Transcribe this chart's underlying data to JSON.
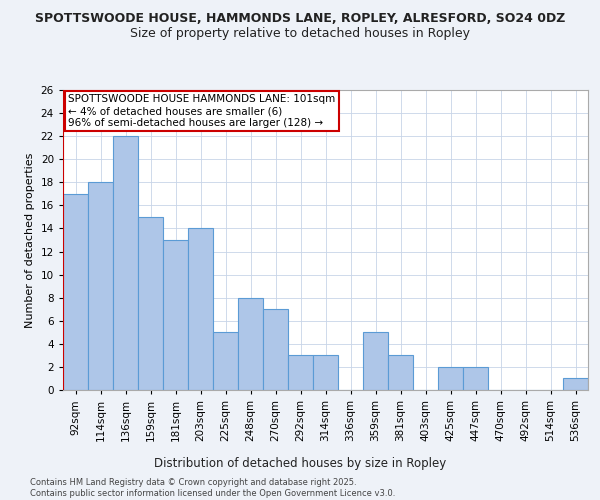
{
  "title1": "SPOTTSWOODE HOUSE, HAMMONDS LANE, ROPLEY, ALRESFORD, SO24 0DZ",
  "title2": "Size of property relative to detached houses in Ropley",
  "xlabel": "Distribution of detached houses by size in Ropley",
  "ylabel": "Number of detached properties",
  "categories": [
    "92sqm",
    "114sqm",
    "136sqm",
    "159sqm",
    "181sqm",
    "203sqm",
    "225sqm",
    "248sqm",
    "270sqm",
    "292sqm",
    "314sqm",
    "336sqm",
    "359sqm",
    "381sqm",
    "403sqm",
    "425sqm",
    "447sqm",
    "470sqm",
    "492sqm",
    "514sqm",
    "536sqm"
  ],
  "values": [
    17,
    18,
    22,
    15,
    13,
    14,
    5,
    8,
    7,
    3,
    3,
    0,
    5,
    3,
    0,
    2,
    2,
    0,
    0,
    0,
    1
  ],
  "bar_color": "#aec6e8",
  "bar_edge_color": "#5b9bd5",
  "highlight_color": "#cc0000",
  "annotation_text": "SPOTTSWOODE HOUSE HAMMONDS LANE: 101sqm\n← 4% of detached houses are smaller (6)\n96% of semi-detached houses are larger (128) →",
  "annotation_box_color": "#ffffff",
  "annotation_box_edge": "#cc0000",
  "vline_pos": -0.5,
  "ylim": [
    0,
    26
  ],
  "yticks": [
    0,
    2,
    4,
    6,
    8,
    10,
    12,
    14,
    16,
    18,
    20,
    22,
    24,
    26
  ],
  "footer": "Contains HM Land Registry data © Crown copyright and database right 2025.\nContains public sector information licensed under the Open Government Licence v3.0.",
  "background_color": "#eef2f8",
  "plot_bg_color": "#ffffff",
  "grid_color": "#c8d4e8",
  "title1_fontsize": 9,
  "title2_fontsize": 9,
  "xlabel_fontsize": 8.5,
  "ylabel_fontsize": 8,
  "tick_fontsize": 7.5,
  "annotation_fontsize": 7.5,
  "footer_fontsize": 6
}
